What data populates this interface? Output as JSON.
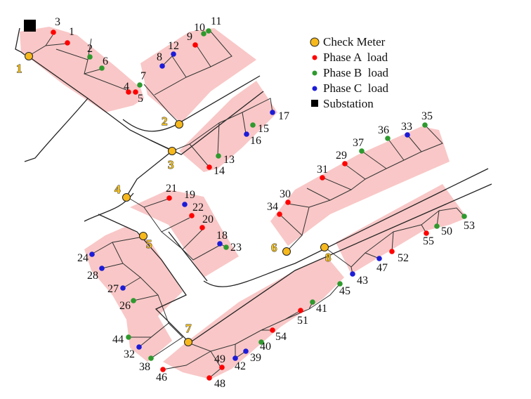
{
  "legend": {
    "check_meter": "Check Meter",
    "phase_a": "Phase A  load",
    "phase_b": "Phase B  load",
    "phase_c": "Phase C  load",
    "substation": "Substation"
  },
  "colors": {
    "phase_a": "#ff0000",
    "phase_b": "#2e9a2e",
    "phase_c": "#1c1cd8",
    "check_meter": "#f6b81c",
    "substation": "#000000",
    "service_area": "#f9c7c7"
  },
  "meters": [
    "1",
    "2",
    "3",
    "4",
    "5",
    "6",
    "7",
    "8"
  ],
  "loads": [
    {
      "id": "1",
      "phase": "A"
    },
    {
      "id": "2",
      "phase": "B"
    },
    {
      "id": "3",
      "phase": "A"
    },
    {
      "id": "4",
      "phase": "A"
    },
    {
      "id": "5",
      "phase": "A"
    },
    {
      "id": "6",
      "phase": "B"
    },
    {
      "id": "7",
      "phase": "B"
    },
    {
      "id": "8",
      "phase": "C"
    },
    {
      "id": "9",
      "phase": "A"
    },
    {
      "id": "10",
      "phase": "B"
    },
    {
      "id": "11",
      "phase": "B"
    },
    {
      "id": "12",
      "phase": "C"
    },
    {
      "id": "13",
      "phase": "B"
    },
    {
      "id": "14",
      "phase": "A"
    },
    {
      "id": "15",
      "phase": "B"
    },
    {
      "id": "16",
      "phase": "C"
    },
    {
      "id": "17",
      "phase": "C"
    },
    {
      "id": "18",
      "phase": "C"
    },
    {
      "id": "19",
      "phase": "C"
    },
    {
      "id": "20",
      "phase": "A"
    },
    {
      "id": "21",
      "phase": "A"
    },
    {
      "id": "22",
      "phase": "A"
    },
    {
      "id": "23",
      "phase": "B"
    },
    {
      "id": "24",
      "phase": "C"
    },
    {
      "id": "26",
      "phase": "B"
    },
    {
      "id": "27",
      "phase": "C"
    },
    {
      "id": "28",
      "phase": "C"
    },
    {
      "id": "29",
      "phase": "A"
    },
    {
      "id": "30",
      "phase": "A"
    },
    {
      "id": "31",
      "phase": "A"
    },
    {
      "id": "32",
      "phase": "C"
    },
    {
      "id": "33",
      "phase": "C"
    },
    {
      "id": "34",
      "phase": "A"
    },
    {
      "id": "35",
      "phase": "B"
    },
    {
      "id": "36",
      "phase": "B"
    },
    {
      "id": "37",
      "phase": "B"
    },
    {
      "id": "38",
      "phase": "B"
    },
    {
      "id": "39",
      "phase": "C"
    },
    {
      "id": "40",
      "phase": "B"
    },
    {
      "id": "41",
      "phase": "B"
    },
    {
      "id": "42",
      "phase": "C"
    },
    {
      "id": "43",
      "phase": "C"
    },
    {
      "id": "44",
      "phase": "B"
    },
    {
      "id": "45",
      "phase": "B"
    },
    {
      "id": "46",
      "phase": "A"
    },
    {
      "id": "47",
      "phase": "C"
    },
    {
      "id": "48",
      "phase": "A"
    },
    {
      "id": "49",
      "phase": "A"
    },
    {
      "id": "50",
      "phase": "B"
    },
    {
      "id": "51",
      "phase": "A"
    },
    {
      "id": "52",
      "phase": "A"
    },
    {
      "id": "53",
      "phase": "B"
    },
    {
      "id": "54",
      "phase": "A"
    },
    {
      "id": "55",
      "phase": "A"
    }
  ]
}
